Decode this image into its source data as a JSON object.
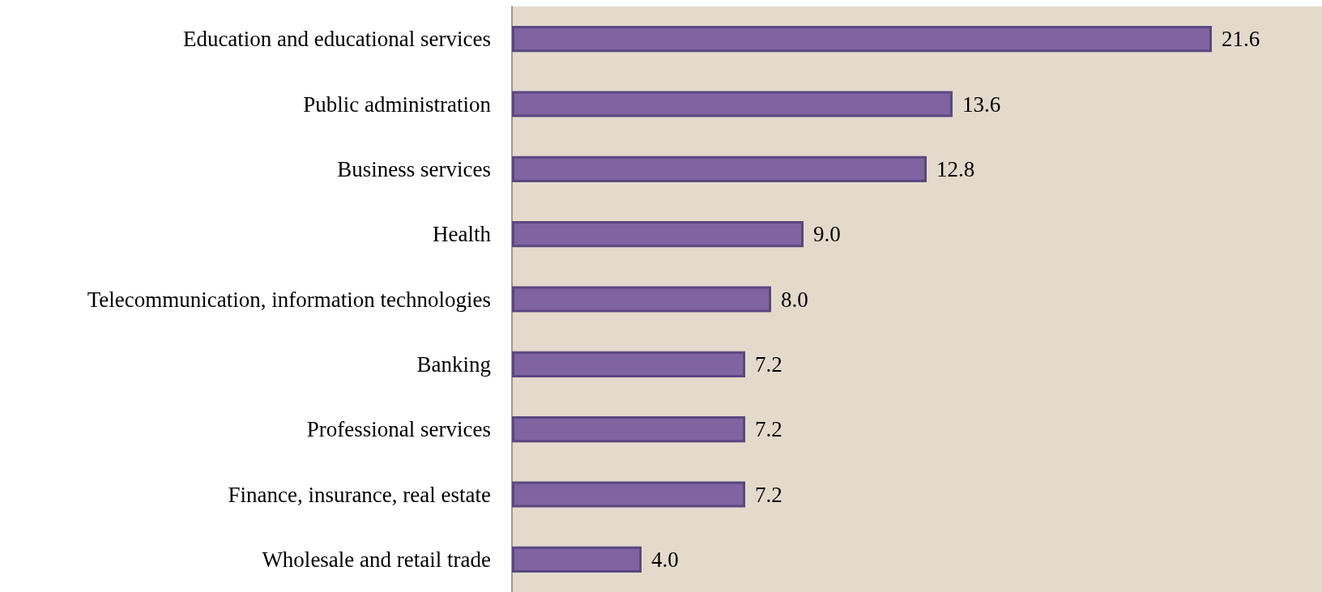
{
  "chart_data": {
    "type": "bar",
    "orientation": "horizontal",
    "categories": [
      "Education and educational services",
      "Public administration",
      "Business services",
      "Health",
      "Telecommunication, information technologies",
      "Banking",
      "Professional services",
      "Finance, insurance, real estate",
      "Wholesale and retail trade"
    ],
    "values": [
      21.6,
      13.6,
      12.8,
      9.0,
      8.0,
      7.2,
      7.2,
      7.2,
      4.0
    ],
    "value_labels": [
      "21.6",
      "13.6",
      "12.8",
      "9.0",
      "8.0",
      "7.2",
      "7.2",
      "7.2",
      "4.0"
    ],
    "color": "#8064a2",
    "xlim": [
      0,
      25
    ],
    "tick_labels": "y",
    "grid": false
  }
}
